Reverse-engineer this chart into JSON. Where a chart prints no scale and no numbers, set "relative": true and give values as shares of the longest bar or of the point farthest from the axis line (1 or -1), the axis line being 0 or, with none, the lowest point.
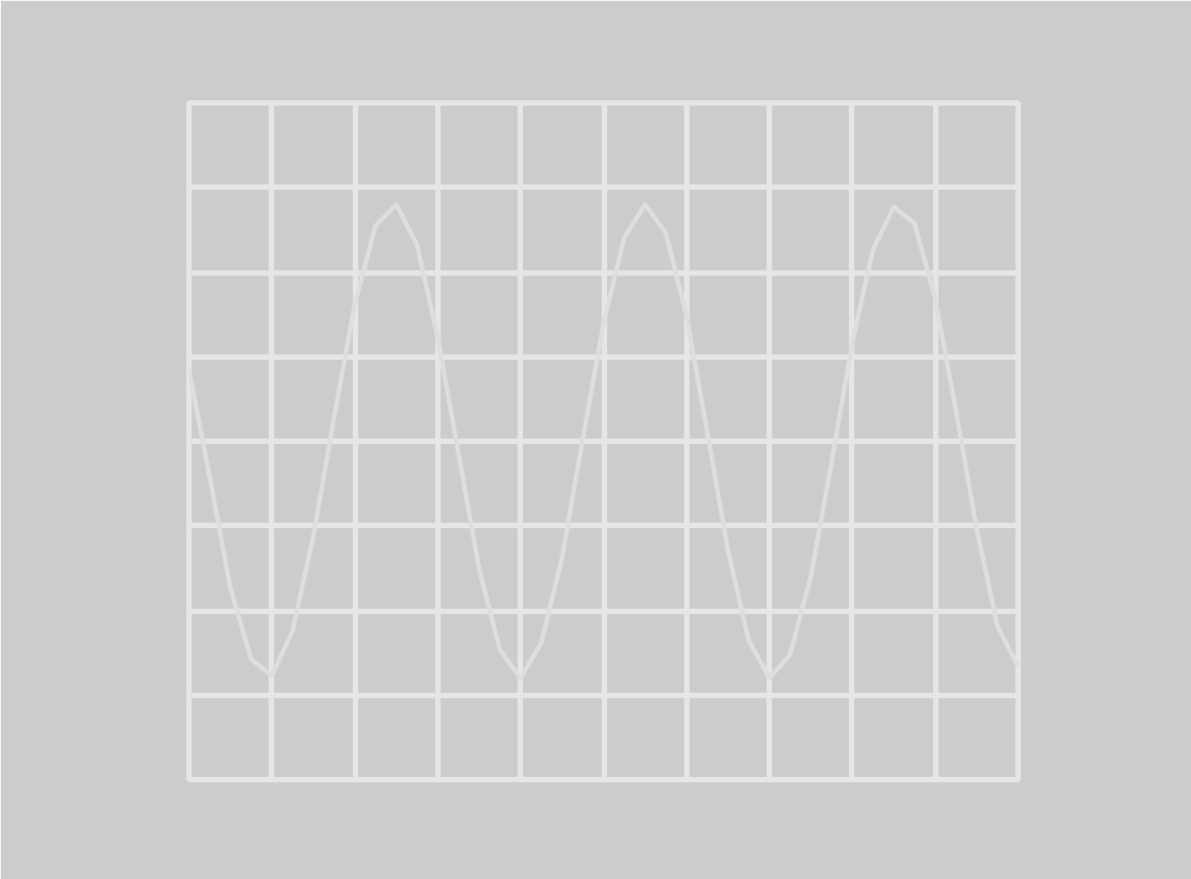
{
  "chart_data": {
    "type": "line",
    "relative": true,
    "grid": true,
    "color": "#dedede",
    "categories": [
      null,
      null,
      null,
      null,
      null,
      null,
      null,
      null,
      null,
      null,
      null,
      null,
      null,
      null,
      null,
      null,
      null,
      null,
      null,
      null,
      null,
      null,
      null,
      null,
      null,
      null,
      null,
      null,
      null,
      null,
      null,
      null,
      null,
      null,
      null,
      null,
      null,
      null,
      null,
      null,
      null
    ],
    "values": [
      0.3,
      -0.15,
      -0.62,
      -0.92,
      -0.99,
      -0.8,
      -0.4,
      0.1,
      0.58,
      0.91,
      1.0,
      0.83,
      0.44,
      -0.05,
      -0.54,
      -0.88,
      -1.0,
      -0.85,
      -0.49,
      0.01,
      0.5,
      0.86,
      1.0,
      0.88,
      0.53,
      0.04,
      -0.46,
      -0.84,
      -1.0,
      -0.9,
      -0.57,
      -0.09,
      0.42,
      0.81,
      0.99,
      0.92,
      0.6,
      0.13,
      -0.37,
      -0.78,
      -0.95
    ]
  }
}
